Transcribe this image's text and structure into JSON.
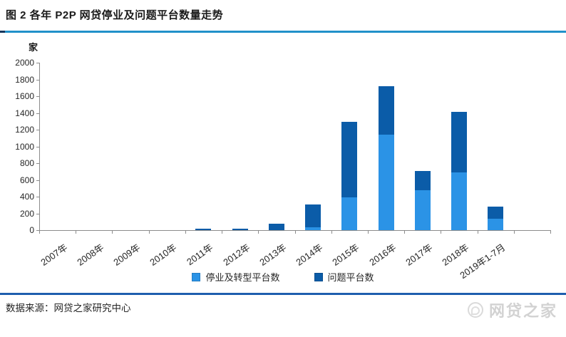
{
  "header": {
    "title": "图 2 各年 P2P 网贷停业及问题平台数量走势"
  },
  "chart_data": {
    "type": "bar",
    "stacked": true,
    "title": "各年P2P网贷停业及问题平台数量走势",
    "unit_label": "家",
    "categories": [
      "2007年",
      "2008年",
      "2009年",
      "2010年",
      "2011年",
      "2012年",
      "2013年",
      "2014年",
      "2015年",
      "2016年",
      "2017年",
      "2018年",
      "2019年1-7月"
    ],
    "series": [
      {
        "key": "closed-transformed",
        "name": "停业及转型平台数",
        "color": "#2b93e6",
        "values": [
          0,
          0,
          0,
          0,
          0,
          0,
          0,
          30,
          390,
          1140,
          480,
          690,
          140
        ]
      },
      {
        "key": "problem",
        "name": "问题平台数",
        "color": "#0b5ca8",
        "values": [
          0,
          0,
          0,
          0,
          20,
          20,
          75,
          275,
          900,
          580,
          230,
          720,
          140
        ]
      }
    ],
    "ylim": [
      0,
      2000
    ],
    "ytick_step": 200,
    "grid": false,
    "legend_position": "bottom"
  },
  "footer": {
    "source": "数据来源：网贷之家研究中心",
    "watermark": "网贷之家"
  }
}
